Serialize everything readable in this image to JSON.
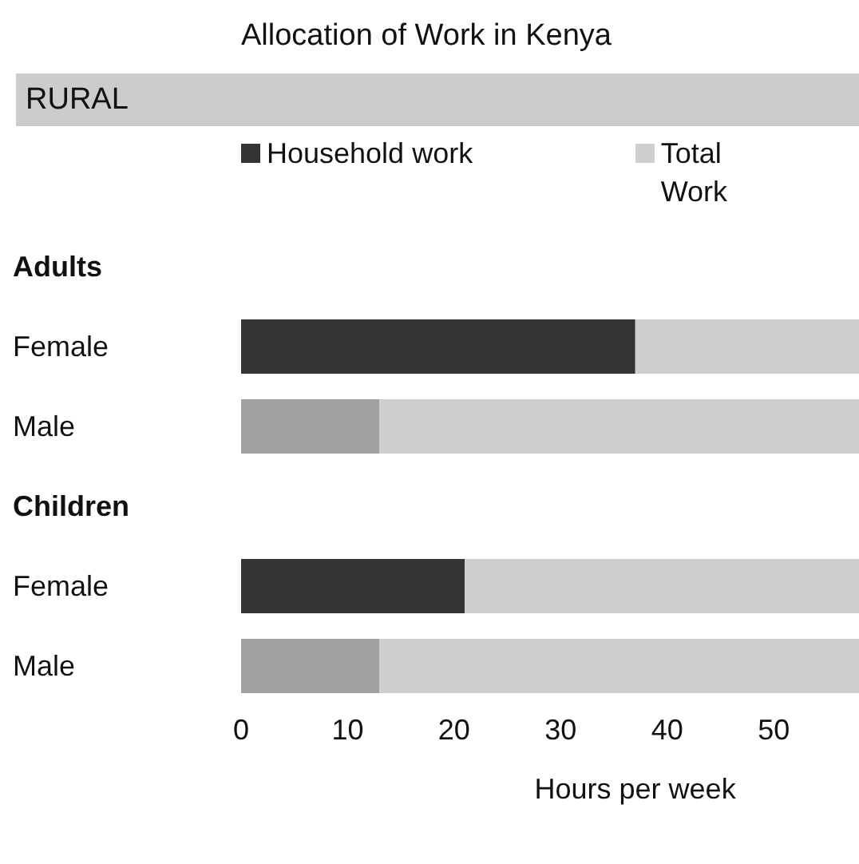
{
  "chart_data": {
    "type": "bar",
    "orientation": "horizontal",
    "stacked": true,
    "title": "Allocation of Work in Kenya",
    "xlabel": "Hours per week",
    "annotations": [
      "RURAL"
    ],
    "categories": [
      "Adults",
      "Female",
      "Male",
      "Children",
      "Female",
      "Male"
    ],
    "series": [
      {
        "name": "Household work",
        "colors": [
          null,
          "#333333",
          "#a0a0a0",
          null,
          "#333333",
          "#a0a0a0"
        ],
        "values": [
          null,
          37,
          13,
          null,
          21,
          13
        ]
      },
      {
        "name": "Total Work",
        "color": "#cfcfcf",
        "values": [
          null,
          21,
          45,
          null,
          37,
          45
        ]
      }
    ],
    "xlim": [
      0,
      58
    ],
    "xticks": [
      0,
      10,
      20,
      30,
      40,
      50
    ],
    "grid": false,
    "legend": "top"
  }
}
